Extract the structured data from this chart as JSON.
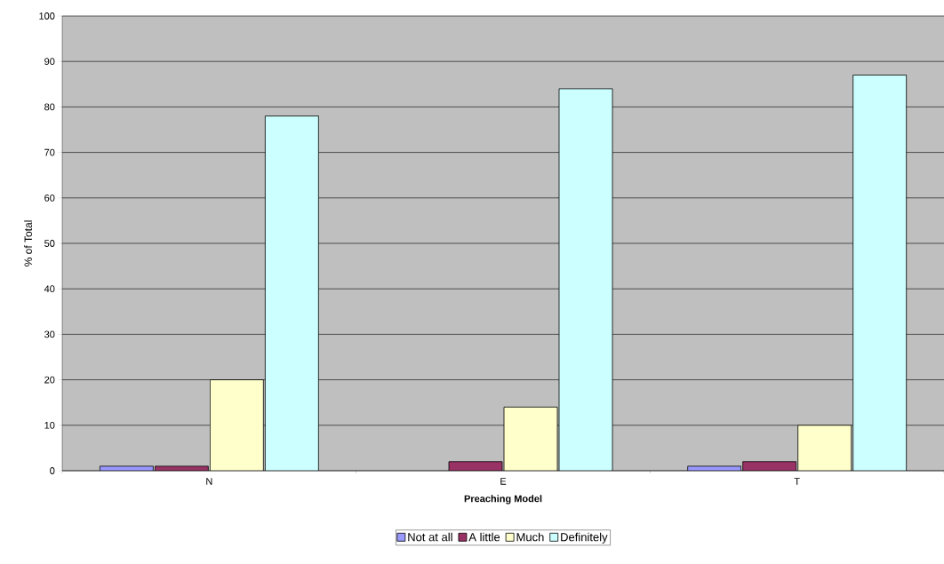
{
  "chart_data": {
    "type": "bar",
    "xlabel": "Preaching Model",
    "ylabel": "% of Total",
    "categories": [
      "N",
      "E",
      "T"
    ],
    "series": [
      {
        "name": "Not at all",
        "color": "#9999ff",
        "values": [
          1,
          null,
          1
        ]
      },
      {
        "name": "A little",
        "color": "#993366",
        "values": [
          1,
          2,
          2
        ]
      },
      {
        "name": "Much",
        "color": "#ffffcc",
        "values": [
          20,
          14,
          10
        ]
      },
      {
        "name": "Definitely",
        "color": "#ccffff",
        "values": [
          78,
          84,
          87
        ]
      }
    ],
    "ylim": [
      0,
      100
    ],
    "yticks": [
      0,
      10,
      20,
      30,
      40,
      50,
      60,
      70,
      80,
      90,
      100
    ],
    "grid": "y",
    "legend": "bottom"
  }
}
